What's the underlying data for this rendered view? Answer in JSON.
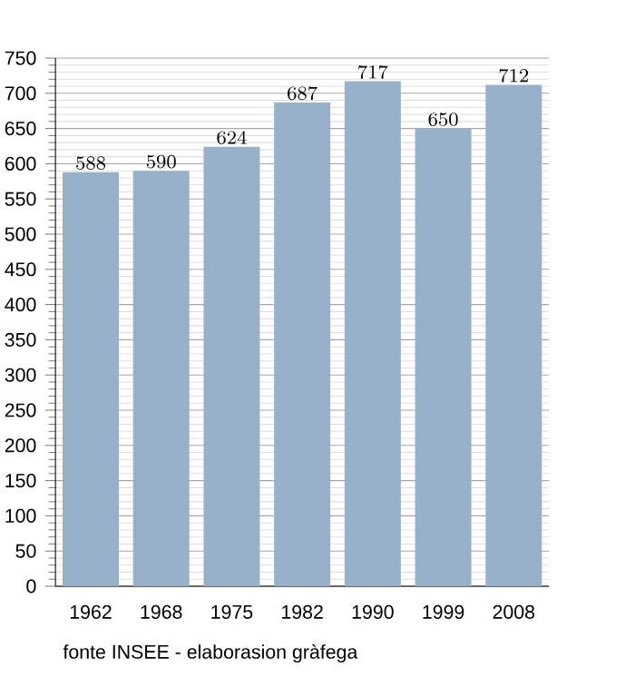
{
  "chart_data": {
    "type": "bar",
    "categories": [
      "1962",
      "1968",
      "1975",
      "1982",
      "1990",
      "1999",
      "2008"
    ],
    "values": [
      588,
      590,
      624,
      687,
      717,
      650,
      712
    ],
    "color": "#97b1cb",
    "ylim": [
      0,
      750
    ],
    "yticks": [
      0,
      50,
      100,
      150,
      200,
      250,
      300,
      350,
      400,
      450,
      500,
      550,
      600,
      650,
      700,
      750
    ],
    "grid": "y",
    "data_labels": true,
    "annotations": [
      "fonte INSEE - elaborasion gràfega"
    ]
  }
}
